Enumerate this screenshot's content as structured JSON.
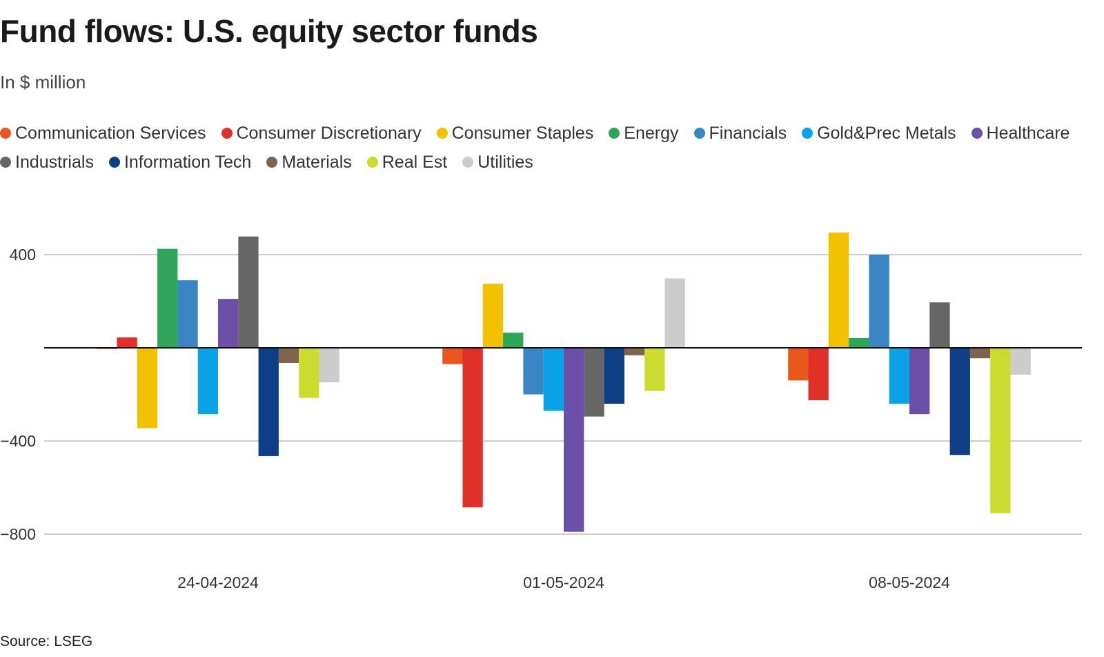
{
  "title": "Fund flows: U.S. equity sector funds",
  "subtitle": "In $ million",
  "source": "Source: LSEG",
  "chart_data": {
    "type": "bar",
    "title": "Fund flows: U.S. equity sector funds",
    "subtitle": "In $ million",
    "xlabel": "",
    "ylabel": "",
    "ylim": [
      -860,
      470
    ],
    "yticks": [
      400,
      -400,
      -800
    ],
    "ytick_labels": [
      "400",
      "−400",
      "−800"
    ],
    "grid": true,
    "legend_position": "top",
    "categories": [
      "24-04-2024",
      "01-05-2024",
      "08-05-2024"
    ],
    "series": [
      {
        "name": "Communication Services",
        "color": "#e8581c",
        "values": [
          -5,
          -70,
          -140
        ]
      },
      {
        "name": "Consumer Discretionary",
        "color": "#e0302a",
        "values": [
          45,
          -685,
          -225
        ]
      },
      {
        "name": "Consumer Staples",
        "color": "#f2c200",
        "values": [
          -345,
          275,
          495
        ]
      },
      {
        "name": "Energy",
        "color": "#2fa55a",
        "values": [
          425,
          65,
          42
        ]
      },
      {
        "name": "Financials",
        "color": "#3a86c4",
        "values": [
          290,
          -200,
          400
        ]
      },
      {
        "name": "Gold&Prec Metals",
        "color": "#0aa3e8",
        "values": [
          -285,
          -270,
          -240
        ]
      },
      {
        "name": "Healthcare",
        "color": "#6c4fa8",
        "values": [
          210,
          -790,
          -285
        ]
      },
      {
        "name": "Industrials",
        "color": "#666666",
        "values": [
          478,
          -295,
          195
        ]
      },
      {
        "name": "Information Tech",
        "color": "#0e3f86",
        "values": [
          -465,
          -240,
          -460
        ]
      },
      {
        "name": "Materials",
        "color": "#80634c",
        "values": [
          -65,
          -32,
          -45
        ]
      },
      {
        "name": "Real Est",
        "color": "#ccdc2e",
        "values": [
          -215,
          -185,
          -710
        ]
      },
      {
        "name": "Utilities",
        "color": "#cccccc",
        "values": [
          -148,
          298,
          -115
        ]
      }
    ]
  }
}
